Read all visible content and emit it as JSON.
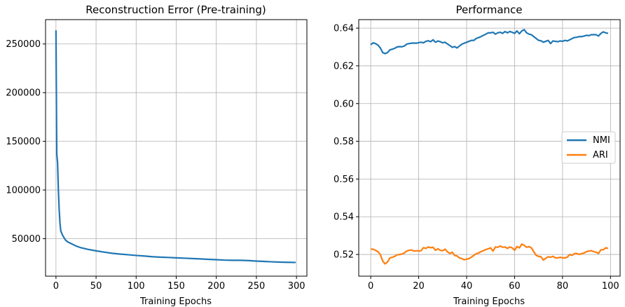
{
  "chart_data": [
    {
      "type": "line",
      "title": "Reconstruction Error (Pre-training)",
      "xlabel": "Training Epochs",
      "ylabel": "",
      "xlim": [
        -13,
        313
      ],
      "ylim": [
        11500,
        275000
      ],
      "xticks": [
        0,
        50,
        100,
        150,
        200,
        250,
        300
      ],
      "yticks": [
        50000,
        100000,
        150000,
        200000,
        250000
      ],
      "grid": true,
      "series": [
        {
          "color": "#1f77b4",
          "x": [
            0,
            1,
            2,
            3,
            4,
            5,
            6,
            8,
            10,
            12,
            15,
            20,
            25,
            30,
            40,
            50,
            60,
            70,
            80,
            90,
            100,
            110,
            120,
            130,
            140,
            150,
            160,
            170,
            180,
            190,
            200,
            210,
            220,
            230,
            240,
            250,
            260,
            270,
            280,
            290,
            299
          ],
          "y": [
            264000,
            137000,
            128000,
            100000,
            80000,
            66000,
            58000,
            54000,
            51000,
            48500,
            46500,
            44500,
            42500,
            41000,
            39000,
            37500,
            36200,
            35000,
            34200,
            33500,
            32800,
            32200,
            31500,
            31000,
            30700,
            30300,
            30000,
            29600,
            29200,
            28800,
            28400,
            28000,
            27800,
            27800,
            27500,
            27000,
            26600,
            26200,
            25900,
            25700,
            25600
          ]
        }
      ]
    },
    {
      "type": "line",
      "title": "Performance",
      "xlabel": "Training Epochs",
      "ylabel": "",
      "xlim": [
        -5,
        104
      ],
      "ylim": [
        0.5085,
        0.6445
      ],
      "xticks": [
        0,
        20,
        40,
        60,
        80,
        100
      ],
      "yticks": [
        "0.52",
        "0.54",
        "0.56",
        "0.58",
        "0.60",
        "0.62",
        "0.64"
      ],
      "grid": true,
      "legend": "center-right",
      "series": [
        {
          "name": "NMI",
          "color": "#1f77b4",
          "x": [
            0,
            1,
            2,
            3,
            4,
            5,
            6,
            7,
            8,
            9,
            10,
            11,
            12,
            13,
            14,
            15,
            16,
            17,
            18,
            19,
            20,
            21,
            22,
            23,
            24,
            25,
            26,
            27,
            28,
            29,
            30,
            31,
            32,
            33,
            34,
            35,
            36,
            37,
            38,
            39,
            40,
            41,
            42,
            43,
            44,
            45,
            46,
            47,
            48,
            49,
            50,
            51,
            52,
            53,
            54,
            55,
            56,
            57,
            58,
            59,
            60,
            61,
            62,
            63,
            64,
            65,
            66,
            67,
            68,
            69,
            70,
            71,
            72,
            73,
            74,
            75,
            76,
            77,
            78,
            79,
            80,
            81,
            82,
            83,
            84,
            85,
            86,
            87,
            88,
            89,
            90,
            91,
            92,
            93,
            94,
            95,
            96,
            97,
            98,
            99
          ],
          "y": [
            0.6312,
            0.6322,
            0.6318,
            0.631,
            0.6295,
            0.627,
            0.6265,
            0.627,
            0.6285,
            0.6288,
            0.6293,
            0.63,
            0.6302,
            0.6301,
            0.6305,
            0.6315,
            0.6318,
            0.632,
            0.6321,
            0.632,
            0.6323,
            0.6325,
            0.6322,
            0.633,
            0.6333,
            0.6328,
            0.6338,
            0.6325,
            0.6332,
            0.6328,
            0.6322,
            0.6325,
            0.6316,
            0.6308,
            0.6298,
            0.6302,
            0.6295,
            0.6305,
            0.6315,
            0.632,
            0.6325,
            0.633,
            0.6335,
            0.6335,
            0.6345,
            0.635,
            0.6355,
            0.6362,
            0.6368,
            0.6375,
            0.6375,
            0.6378,
            0.6368,
            0.6375,
            0.6378,
            0.6372,
            0.6382,
            0.6375,
            0.6382,
            0.6378,
            0.6372,
            0.6385,
            0.637,
            0.6385,
            0.6392,
            0.6375,
            0.6368,
            0.6365,
            0.6355,
            0.6345,
            0.6335,
            0.6333,
            0.6325,
            0.633,
            0.6335,
            0.6318,
            0.6332,
            0.633,
            0.6328,
            0.6332,
            0.633,
            0.6335,
            0.6332,
            0.6338,
            0.6345,
            0.635,
            0.6352,
            0.6355,
            0.6355,
            0.6358,
            0.6362,
            0.636,
            0.6365,
            0.6365,
            0.6365,
            0.6358,
            0.6372,
            0.638,
            0.6375,
            0.6372
          ]
        },
        {
          "name": "ARI",
          "color": "#ff7f0e",
          "x": [
            0,
            1,
            2,
            3,
            4,
            5,
            6,
            7,
            8,
            9,
            10,
            11,
            12,
            13,
            14,
            15,
            16,
            17,
            18,
            19,
            20,
            21,
            22,
            23,
            24,
            25,
            26,
            27,
            28,
            29,
            30,
            31,
            32,
            33,
            34,
            35,
            36,
            37,
            38,
            39,
            40,
            41,
            42,
            43,
            44,
            45,
            46,
            47,
            48,
            49,
            50,
            51,
            52,
            53,
            54,
            55,
            56,
            57,
            58,
            59,
            60,
            61,
            62,
            63,
            64,
            65,
            66,
            67,
            68,
            69,
            70,
            71,
            72,
            73,
            74,
            75,
            76,
            77,
            78,
            79,
            80,
            81,
            82,
            83,
            84,
            85,
            86,
            87,
            88,
            89,
            90,
            91,
            92,
            93,
            94,
            95,
            96,
            97,
            98,
            99
          ],
          "y": [
            0.5228,
            0.5228,
            0.5222,
            0.5215,
            0.52,
            0.5165,
            0.515,
            0.516,
            0.5182,
            0.5185,
            0.519,
            0.5198,
            0.52,
            0.5202,
            0.5208,
            0.5218,
            0.5222,
            0.5224,
            0.5218,
            0.522,
            0.5218,
            0.522,
            0.5236,
            0.5232,
            0.524,
            0.5236,
            0.5238,
            0.5222,
            0.523,
            0.5222,
            0.522,
            0.5228,
            0.5214,
            0.5205,
            0.5212,
            0.5195,
            0.5192,
            0.5182,
            0.5178,
            0.5172,
            0.5175,
            0.5178,
            0.5186,
            0.5195,
            0.5204,
            0.5208,
            0.5215,
            0.522,
            0.5226,
            0.523,
            0.5235,
            0.5218,
            0.524,
            0.5238,
            0.5245,
            0.5238,
            0.524,
            0.5232,
            0.524,
            0.5235,
            0.5222,
            0.5242,
            0.5235,
            0.5255,
            0.5248,
            0.5238,
            0.5242,
            0.5235,
            0.5215,
            0.5195,
            0.519,
            0.5188,
            0.517,
            0.518,
            0.5188,
            0.5185,
            0.519,
            0.5182,
            0.5182,
            0.5185,
            0.5182,
            0.5182,
            0.5186,
            0.52,
            0.5195,
            0.5205,
            0.5205,
            0.52,
            0.5205,
            0.5208,
            0.5215,
            0.5218,
            0.522,
            0.5215,
            0.5212,
            0.5205,
            0.5225,
            0.5225,
            0.5235,
            0.5232
          ]
        }
      ]
    }
  ]
}
